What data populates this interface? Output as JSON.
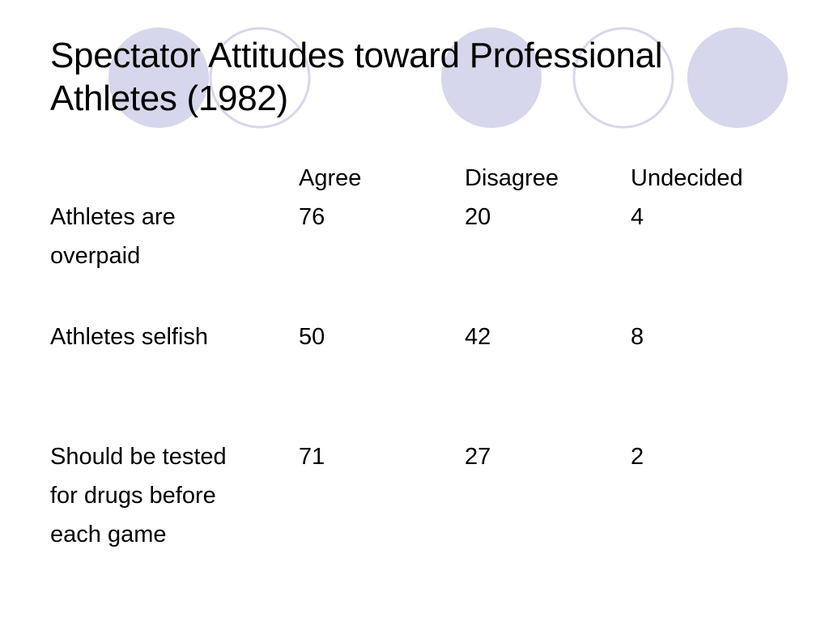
{
  "slide": {
    "title_line1": "Spectator Attitudes toward Professional",
    "title_line2": "Athletes (1982)",
    "theme_colors": {
      "circle_fill": "#d6d6ec",
      "circle_stroke": "#d6d6ec"
    }
  },
  "table": {
    "headers": [
      "",
      "Agree",
      "Disagree",
      "Undecided"
    ],
    "rows": [
      {
        "label_lines": [
          "Athletes are",
          "overpaid"
        ],
        "agree": "76",
        "disagree": "20",
        "undecided": "4"
      },
      {
        "label_lines": [
          "Athletes selfish"
        ],
        "agree": "50",
        "disagree": "42",
        "undecided": "8"
      },
      {
        "label_lines": [
          "Should be tested",
          "for drugs before",
          "each game"
        ],
        "agree": "71",
        "disagree": "27",
        "undecided": "2"
      }
    ]
  }
}
